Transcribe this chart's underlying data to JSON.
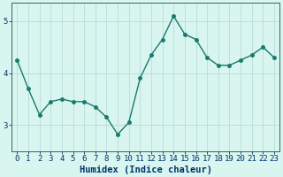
{
  "x": [
    0,
    1,
    2,
    3,
    4,
    5,
    6,
    7,
    8,
    9,
    10,
    11,
    12,
    13,
    14,
    15,
    16,
    17,
    18,
    19,
    20,
    21,
    22,
    23
  ],
  "y": [
    4.25,
    3.7,
    3.2,
    3.45,
    3.5,
    3.45,
    3.45,
    3.35,
    3.15,
    2.82,
    3.05,
    3.9,
    4.35,
    4.65,
    5.1,
    4.75,
    4.65,
    4.3,
    4.15,
    4.15,
    4.25,
    4.35,
    4.5,
    4.3
  ],
  "line_color": "#1a7a6e",
  "marker": "o",
  "marker_size": 2.5,
  "linewidth": 1.0,
  "bg_color": "#d8f5f0",
  "grid_color": "#b8ddd8",
  "xlabel": "Humidex (Indice chaleur)",
  "xlim": [
    -0.5,
    23.5
  ],
  "ylim": [
    2.5,
    5.35
  ],
  "yticks": [
    3,
    4,
    5
  ],
  "xticks": [
    0,
    1,
    2,
    3,
    4,
    5,
    6,
    7,
    8,
    9,
    10,
    11,
    12,
    13,
    14,
    15,
    16,
    17,
    18,
    19,
    20,
    21,
    22,
    23
  ],
  "xlabel_fontsize": 7.5,
  "tick_fontsize": 6.5,
  "label_color": "#003366",
  "axis_color": "#336655"
}
